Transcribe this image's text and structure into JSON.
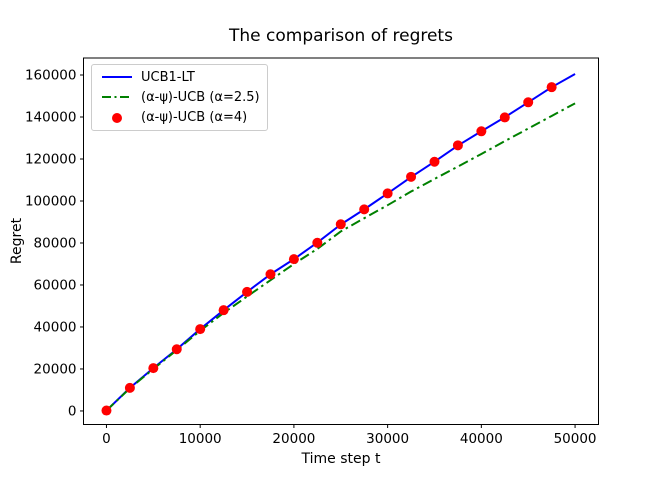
{
  "chart_data": {
    "type": "line",
    "title": "The comparison of regrets",
    "xlabel": "Time step t",
    "ylabel": "Regret",
    "xlim": [
      -2450,
      52500
    ],
    "ylim": [
      -6450,
      168100
    ],
    "x_ticks": [
      0,
      10000,
      20000,
      30000,
      40000,
      50000
    ],
    "y_ticks": [
      0,
      20000,
      40000,
      60000,
      80000,
      100000,
      120000,
      140000,
      160000
    ],
    "grid": false,
    "legend_position": "upper left",
    "axis_color": "#000000",
    "x": [
      0,
      2500,
      5000,
      7500,
      10000,
      12500,
      15000,
      17500,
      20000,
      22500,
      25000,
      27500,
      30000,
      32500,
      35000,
      37500,
      40000,
      42500,
      45000,
      47500,
      50000
    ],
    "series": [
      {
        "name": "UCB1-LT",
        "color": "#0000ff",
        "style": "solid",
        "values": [
          200,
          11000,
          20400,
          29400,
          39000,
          48000,
          56700,
          65100,
          72300,
          80200,
          88800,
          96000,
          103600,
          111400,
          118700,
          126400,
          133200,
          139900,
          147000,
          154200,
          160500
        ]
      },
      {
        "name": "(α-ψ)-UCB (α=2.5)",
        "color": "#008000",
        "style": "dashdot",
        "values": [
          200,
          10800,
          20000,
          29000,
          38200,
          46700,
          54500,
          62300,
          70000,
          77200,
          85500,
          91800,
          98000,
          104500,
          110500,
          116400,
          122400,
          128500,
          134500,
          140500,
          146500
        ]
      },
      {
        "name": "(α-ψ)-UCB (α=4)",
        "color": "#ff0000",
        "style": "markers",
        "marker": "circle",
        "marker_radius": 5,
        "values": [
          200,
          11000,
          20400,
          29400,
          39000,
          48000,
          56700,
          65100,
          72300,
          80100,
          88900,
          96000,
          103600,
          111500,
          118700,
          126500,
          133200,
          139800,
          147000,
          154200,
          null
        ]
      }
    ]
  }
}
